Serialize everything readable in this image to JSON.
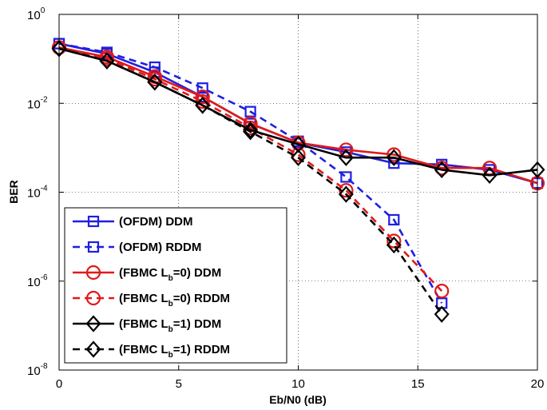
{
  "chart_data": {
    "type": "line",
    "title": "",
    "xlabel": "Eb/N0 (dB)",
    "ylabel": "BER",
    "yscale": "log",
    "xlim": [
      0,
      20
    ],
    "ylim_exponent": [
      -8,
      0
    ],
    "grid": true,
    "legend_position": "bottom-left",
    "x_ticks": [
      "0",
      "5",
      "10",
      "15",
      "20"
    ],
    "y_ticks": [
      {
        "base": "10",
        "exp": "0"
      },
      {
        "base": "10",
        "exp": "-2"
      },
      {
        "base": "10",
        "exp": "-4"
      },
      {
        "base": "10",
        "exp": "-6"
      },
      {
        "base": "10",
        "exp": "-8"
      }
    ],
    "series": [
      {
        "name": "(OFDM) DDM",
        "label_parts": [
          "(OFDM) DDM"
        ],
        "color": "#1f1fe0",
        "dash": "solid",
        "marker": "square",
        "x": [
          0,
          2,
          4,
          6,
          8,
          10,
          12,
          14,
          16,
          18,
          20
        ],
        "y": [
          0.22,
          0.13,
          0.05,
          0.014,
          0.0035,
          0.0013,
          0.0008,
          0.00045,
          0.00042,
          0.00032,
          0.00016
        ]
      },
      {
        "name": "(OFDM) RDDM",
        "label_parts": [
          "(OFDM) RDDM"
        ],
        "color": "#1f1fe0",
        "dash": "dashed",
        "marker": "square",
        "x": [
          0,
          2,
          4,
          6,
          8,
          10,
          12,
          14,
          16
        ],
        "y": [
          0.22,
          0.14,
          0.065,
          0.022,
          0.0065,
          0.0014,
          0.00022,
          2.4e-05,
          3.2e-07
        ]
      },
      {
        "name": "(FBMC Lb=0) DDM",
        "label_parts": [
          "(FBMC L",
          "b",
          "=0) DDM"
        ],
        "color": "#e01a1a",
        "dash": "solid",
        "marker": "circle",
        "x": [
          0,
          2,
          4,
          6,
          8,
          10,
          12,
          14,
          16,
          18,
          20
        ],
        "y": [
          0.18,
          0.11,
          0.04,
          0.014,
          0.0035,
          0.0013,
          0.0009,
          0.0007,
          0.00035,
          0.00035,
          0.00016
        ]
      },
      {
        "name": "(FBMC Lb=0) RDDM",
        "label_parts": [
          "(FBMC L",
          "b",
          "=0) RDDM"
        ],
        "color": "#e01a1a",
        "dash": "dashed",
        "marker": "circle",
        "x": [
          0,
          2,
          4,
          6,
          8,
          10,
          12,
          14,
          16
        ],
        "y": [
          0.18,
          0.1,
          0.035,
          0.011,
          0.0028,
          0.0007,
          0.00011,
          8e-06,
          6e-07
        ]
      },
      {
        "name": "(FBMC Lb=1) DDM",
        "label_parts": [
          "(FBMC L",
          "b",
          "=1) DDM"
        ],
        "color": "#000000",
        "dash": "solid",
        "marker": "diamond",
        "x": [
          0,
          2,
          4,
          6,
          8,
          10,
          12,
          14,
          16,
          18,
          20
        ],
        "y": [
          0.17,
          0.09,
          0.03,
          0.009,
          0.0025,
          0.0012,
          0.0006,
          0.0006,
          0.00032,
          0.00024,
          0.00032
        ]
      },
      {
        "name": "(FBMC Lb=1) RDDM",
        "label_parts": [
          "(FBMC L",
          "b",
          "=1) RDDM"
        ],
        "color": "#000000",
        "dash": "dashed",
        "marker": "diamond",
        "x": [
          0,
          2,
          4,
          6,
          8,
          10,
          12,
          14,
          16
        ],
        "y": [
          0.17,
          0.09,
          0.03,
          0.009,
          0.0023,
          0.0006,
          9e-05,
          6.5e-06,
          1.8e-07
        ]
      }
    ]
  }
}
